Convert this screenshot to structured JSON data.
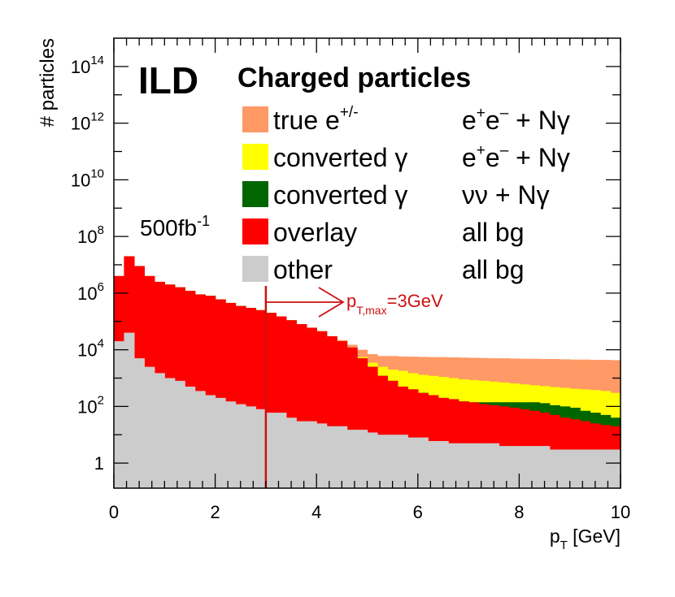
{
  "chart_data": {
    "type": "bar",
    "stacked": true,
    "log_y": true,
    "title": "Charged particles",
    "experiment_label": "ILD",
    "luminosity_label": "500fb",
    "luminosity_sup": "-1",
    "xlabel": "p",
    "xlabel_sub": "T",
    "xlabel_unit": " [GeV]",
    "ylabel": "# particles",
    "xlim": [
      0,
      10
    ],
    "ylim": [
      0.13,
      1000000000000000.0
    ],
    "x_ticks": [
      {
        "value": 0,
        "label": "0"
      },
      {
        "value": 2,
        "label": "2"
      },
      {
        "value": 4,
        "label": "4"
      },
      {
        "value": 6,
        "label": "6"
      },
      {
        "value": 8,
        "label": "8"
      },
      {
        "value": 10,
        "label": "10"
      }
    ],
    "y_ticks": [
      {
        "value": 1,
        "base": "1",
        "exp": ""
      },
      {
        "value": 100,
        "base": "10",
        "exp": "2"
      },
      {
        "value": 10000,
        "base": "10",
        "exp": "4"
      },
      {
        "value": 1000000,
        "base": "10",
        "exp": "6"
      },
      {
        "value": 100000000,
        "base": "10",
        "exp": "8"
      },
      {
        "value": 10000000000,
        "base": "10",
        "exp": "10"
      },
      {
        "value": 1000000000000,
        "base": "10",
        "exp": "12"
      },
      {
        "value": 100000000000000,
        "base": "10",
        "exp": "14"
      }
    ],
    "grid": false,
    "legend_position": "top-right",
    "bin_edges": [
      0,
      0.2,
      0.4,
      0.6,
      0.8,
      1.0,
      1.2,
      1.4,
      1.6,
      1.8,
      2.0,
      2.2,
      2.4,
      2.6,
      2.8,
      3.0,
      3.2,
      3.4,
      3.6,
      3.8,
      4.0,
      4.2,
      4.4,
      4.6,
      4.8,
      5.0,
      5.2,
      5.4,
      5.6,
      5.8,
      6.0,
      6.2,
      6.4,
      6.6,
      6.8,
      7.0,
      7.2,
      7.4,
      7.6,
      7.8,
      8.0,
      8.2,
      8.4,
      8.6,
      8.8,
      9.0,
      9.2,
      9.4,
      9.6,
      9.8,
      10.0
    ],
    "stack_tops": [
      {
        "name": "other",
        "color": "#cccccc",
        "values": [
          20000,
          40000,
          5000,
          2500,
          1500,
          1000,
          800,
          500,
          350,
          250,
          200,
          150,
          120,
          100,
          80,
          60,
          60,
          40,
          30,
          30,
          25,
          20,
          20,
          15,
          15,
          12,
          10,
          10,
          10,
          8,
          8,
          6,
          6,
          5,
          5,
          5,
          5,
          5,
          4,
          4,
          4,
          4,
          4,
          3,
          3,
          3,
          3,
          3,
          3,
          3
        ]
      },
      {
        "name": "overlay",
        "color": "#ff0000",
        "values": [
          4000000,
          20000000,
          9000000,
          4000000,
          2500000,
          2000000,
          1600000,
          1200000,
          900000,
          800000,
          600000,
          450000,
          350000,
          300000,
          250000,
          200000,
          150000,
          110000,
          80000,
          60000,
          45000,
          30000,
          20000,
          12000,
          5000,
          2500,
          1200,
          800,
          500,
          400,
          300,
          250,
          200,
          180,
          150,
          140,
          120,
          110,
          100,
          90,
          80,
          70,
          60,
          50,
          40,
          35,
          30,
          25,
          22,
          20
        ]
      },
      {
        "name": "converted γ νν + Nγ",
        "color": "#006600",
        "values": [
          4000000,
          20000000,
          9000000,
          4000000,
          2500000,
          2000000,
          1600000,
          1200000,
          900000,
          800000,
          600000,
          450000,
          350000,
          300000,
          250000,
          200000,
          150000,
          110000,
          80000,
          60000,
          45000,
          30000,
          20000,
          12000,
          5000,
          2500,
          1200,
          800,
          500,
          400,
          300,
          250,
          200,
          180,
          150,
          140,
          140,
          140,
          140,
          140,
          140,
          140,
          130,
          110,
          100,
          90,
          70,
          60,
          50,
          40
        ]
      },
      {
        "name": "converted γ e+e− + Nγ",
        "color": "#ffff00",
        "values": [
          4000000,
          20000000,
          9000000,
          4000000,
          2500000,
          2000000,
          1600000,
          1200000,
          900000,
          800000,
          600000,
          450000,
          350000,
          300000,
          250000,
          200000,
          150000,
          110000,
          80000,
          60000,
          45000,
          30000,
          20000,
          12000,
          5500,
          3500,
          2500,
          2000,
          1800,
          1500,
          1300,
          1200,
          1100,
          1000,
          900,
          850,
          800,
          750,
          700,
          650,
          600,
          560,
          520,
          480,
          450,
          420,
          400,
          380,
          350,
          300
        ]
      },
      {
        "name": "true e+/- e+e− + Nγ",
        "color": "#ff9966",
        "values": [
          4000000,
          20000000,
          9000000,
          4000000,
          2500000,
          2000000,
          1600000,
          1200000,
          900000,
          800000,
          600000,
          450000,
          350000,
          300000,
          250000,
          200000,
          150000,
          110000,
          80000,
          60000,
          45000,
          30000,
          22000,
          15000,
          10000,
          7000,
          6000,
          6000,
          5800,
          5700,
          5600,
          5500,
          5500,
          5400,
          5300,
          5200,
          5100,
          5000,
          5000,
          4900,
          4800,
          4800,
          4700,
          4700,
          4600,
          4500,
          4500,
          4400,
          4400,
          4300
        ]
      }
    ],
    "legend": [
      {
        "color": "#ff9966",
        "label": "true e",
        "label_sup": "+/-",
        "process": "e",
        "process_sup1": "+",
        "process_mid": "e",
        "process_sup2": "–",
        "process_tail": " + Nγ"
      },
      {
        "color": "#ffff00",
        "label": "converted γ",
        "label_sup": "",
        "process": "e",
        "process_sup1": "+",
        "process_mid": "e",
        "process_sup2": "–",
        "process_tail": " + Nγ"
      },
      {
        "color": "#006600",
        "label": "converted γ",
        "label_sup": "",
        "process": "νν + Nγ",
        "process_sup1": "",
        "process_mid": "",
        "process_sup2": "",
        "process_tail": ""
      },
      {
        "color": "#ff0000",
        "label": "overlay",
        "label_sup": "",
        "process": "all bg",
        "process_sup1": "",
        "process_mid": "",
        "process_sup2": "",
        "process_tail": ""
      },
      {
        "color": "#cccccc",
        "label": "other",
        "label_sup": "",
        "process": "all bg",
        "process_sup1": "",
        "process_mid": "",
        "process_sup2": "",
        "process_tail": ""
      }
    ],
    "annotation": {
      "x": 3,
      "label": "p",
      "label_sub": "T,max",
      "label_tail": "=3GeV",
      "color": "#cc1111"
    }
  }
}
